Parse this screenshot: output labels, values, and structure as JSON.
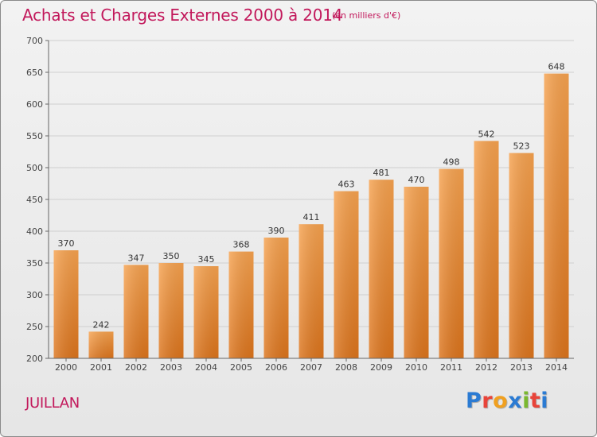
{
  "header": {
    "title": "Achats et Charges Externes 2000 à 2014",
    "unit": "(en milliers d'€)"
  },
  "footer": {
    "commune": "JUILLAN",
    "logo_letters": [
      "P",
      "r",
      "o",
      "x",
      "i",
      "t",
      "i"
    ],
    "logo_colors": [
      "#2b7bd3",
      "#e8443a",
      "#f0a020",
      "#2b7bd3",
      "#7ab82f",
      "#e8443a",
      "#2b7bd3"
    ]
  },
  "chart_data": {
    "type": "bar",
    "categories": [
      "2000",
      "2001",
      "2002",
      "2003",
      "2004",
      "2005",
      "2006",
      "2007",
      "2008",
      "2009",
      "2010",
      "2011",
      "2012",
      "2013",
      "2014"
    ],
    "values": [
      370,
      242,
      347,
      350,
      345,
      368,
      390,
      411,
      463,
      481,
      470,
      498,
      542,
      523,
      648
    ],
    "ylim": [
      200,
      700
    ],
    "yticks": [
      200,
      250,
      300,
      350,
      400,
      450,
      500,
      550,
      600,
      650,
      700
    ],
    "grid": true,
    "bar_color": "#f0892c"
  }
}
